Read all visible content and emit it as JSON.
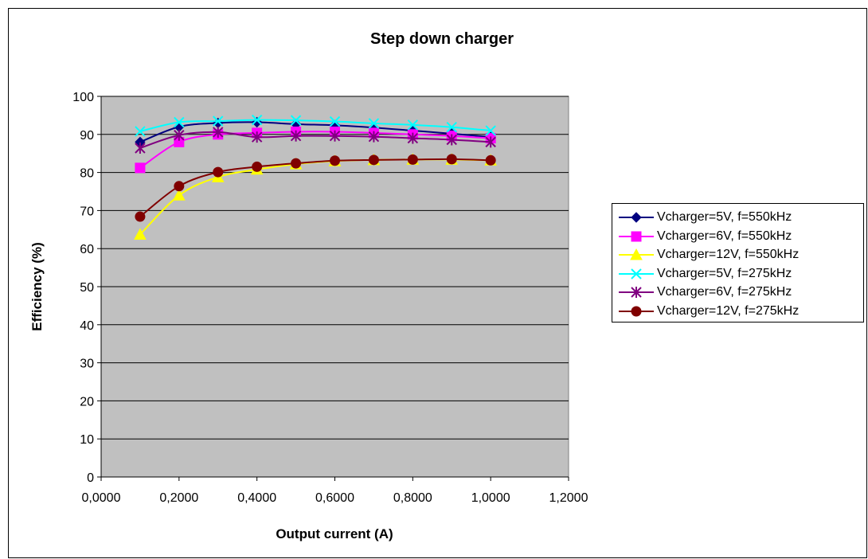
{
  "chart_data": {
    "type": "line",
    "title": "Step down charger",
    "xlabel": "Output current (A)",
    "ylabel": "Efficiency (%)",
    "xlim": [
      0,
      1.2
    ],
    "ylim": [
      0,
      100
    ],
    "x_ticks": [
      "0,0000",
      "0,2000",
      "0,4000",
      "0,6000",
      "0,8000",
      "1,0000",
      "1,2000"
    ],
    "y_ticks": [
      "0",
      "10",
      "20",
      "30",
      "40",
      "50",
      "60",
      "70",
      "80",
      "90",
      "100"
    ],
    "grid": true,
    "legend_position": "right",
    "plot_background": "#c0c0c0",
    "x": [
      0.1,
      0.2,
      0.3,
      0.4,
      0.5,
      0.6,
      0.7,
      0.8,
      0.9,
      1.0
    ],
    "series": [
      {
        "name": "Vcharger=5V, f=550kHz",
        "color": "#000080",
        "marker": "diamond",
        "values": [
          88.0,
          92.0,
          93.0,
          93.2,
          92.7,
          92.4,
          91.8,
          91.0,
          90.2,
          89.3
        ]
      },
      {
        "name": "Vcharger=6V, f=550kHz",
        "color": "#ff00ff",
        "marker": "square",
        "values": [
          81.2,
          88.0,
          90.0,
          90.4,
          90.7,
          90.7,
          90.4,
          90.0,
          89.6,
          89.0
        ]
      },
      {
        "name": "Vcharger=12V, f=550kHz",
        "color": "#ffff00",
        "marker": "triangle",
        "values": [
          63.7,
          74.0,
          78.8,
          80.8,
          82.2,
          83.0,
          83.3,
          83.4,
          83.4,
          83.2
        ]
      },
      {
        "name": "Vcharger=5V, f=275kHz",
        "color": "#00ffff",
        "marker": "x",
        "values": [
          90.8,
          93.2,
          93.5,
          93.8,
          93.7,
          93.4,
          92.9,
          92.5,
          91.9,
          91.0
        ]
      },
      {
        "name": "Vcharger=6V, f=275kHz",
        "color": "#800080",
        "marker": "star",
        "values": [
          86.4,
          89.8,
          90.6,
          89.3,
          89.6,
          89.6,
          89.4,
          89.0,
          88.6,
          88.0
        ]
      },
      {
        "name": "Vcharger=12V, f=275kHz",
        "color": "#800000",
        "marker": "circle",
        "values": [
          68.4,
          76.4,
          80.1,
          81.5,
          82.4,
          83.1,
          83.3,
          83.4,
          83.5,
          83.2
        ]
      }
    ]
  }
}
